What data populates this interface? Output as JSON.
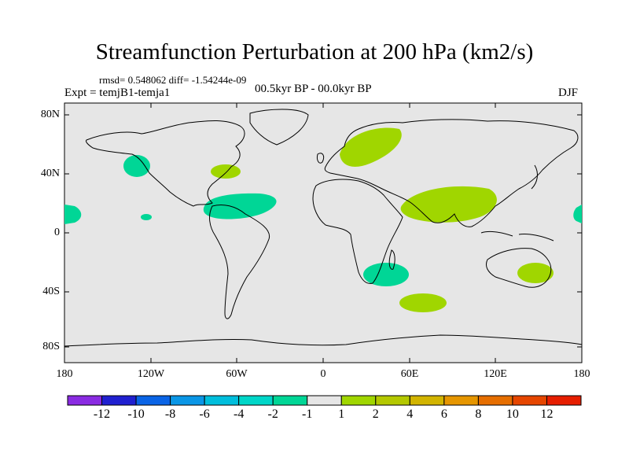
{
  "title": "Streamfunction Perturbation at 200 hPa (km2/s)",
  "stats": "rmsd= 0.548062 diff= -1.54244e-09",
  "experiment": "Expt = temjB1-temja1",
  "period": "00.5kyr BP - 00.0kyr BP",
  "season": "DJF",
  "colors": {
    "ocean_land_bg": "#e6e6e6",
    "positive_anomaly": "#a0d600",
    "negative_anomaly": "#00d696",
    "coastline": "#000000"
  },
  "latitude_ticks": [
    "80N",
    "40N",
    "0",
    "40S",
    "80S"
  ],
  "longitude_ticks": [
    "180",
    "120W",
    "60W",
    "0",
    "60E",
    "120E",
    "180"
  ],
  "colorbar": {
    "colors": [
      "#8a2be2",
      "#2020d0",
      "#0a64e6",
      "#0a96e6",
      "#00bedc",
      "#00d6c8",
      "#00d696",
      "#e6e6e6",
      "#a0d600",
      "#b4c800",
      "#d2b400",
      "#e69600",
      "#e66e00",
      "#e64600",
      "#e61e00"
    ],
    "labels": [
      "-12",
      "-10",
      "-8",
      "-6",
      "-4",
      "-2",
      "-1",
      "1",
      "2",
      "4",
      "6",
      "8",
      "10",
      "12"
    ]
  }
}
